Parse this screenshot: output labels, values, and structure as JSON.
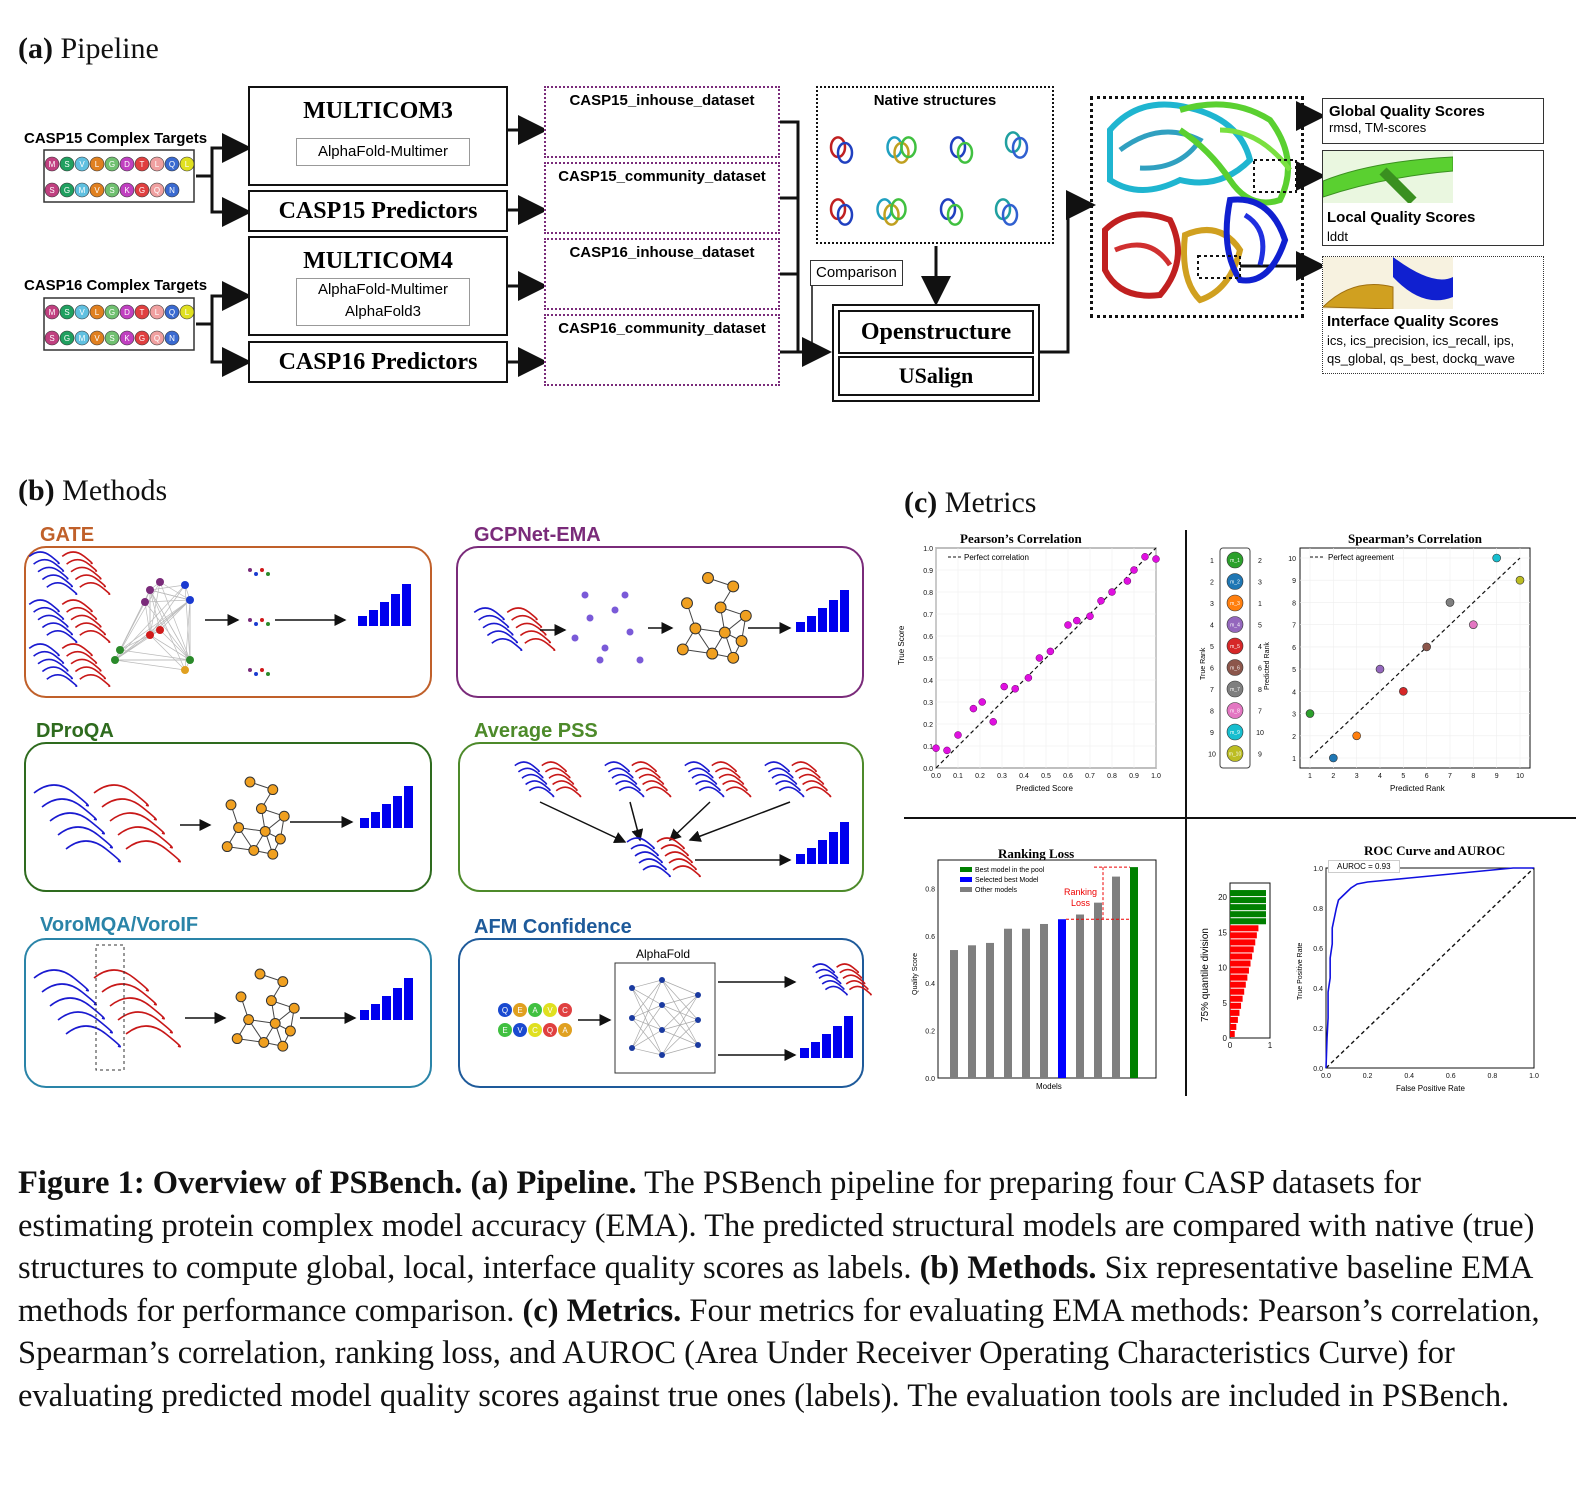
{
  "panel_a": {
    "label": "(a)",
    "title": "Pipeline",
    "casp15_targets": "CASP15 Complex Targets",
    "casp16_targets": "CASP16 Complex Targets",
    "seq_row1": [
      "M",
      "S",
      "V",
      "L",
      "G",
      "D",
      "T",
      "L",
      "Q",
      "L"
    ],
    "seq_row2": [
      "S",
      "G",
      "M",
      "V",
      "S",
      "K",
      "G",
      "Q",
      "N"
    ],
    "multicom3": "MULTICOM3",
    "multicom3_sub": "AlphaFold-Multimer",
    "casp15_predictors": "CASP15 Predictors",
    "multicom4": "MULTICOM4",
    "multicom4_sub1": "AlphaFold-Multimer",
    "multicom4_sub2": "AlphaFold3",
    "casp16_predictors": "CASP16 Predictors",
    "datasets": [
      "CASP15_inhouse_dataset",
      "CASP15_community_dataset",
      "CASP16_inhouse_dataset",
      "CASP16_community_dataset"
    ],
    "native": "Native structures",
    "comparison": "Comparison",
    "openstructure": "Openstructure",
    "usalign": "USalign",
    "global_h": "Global Quality Scores",
    "global_s": "rmsd, TM-scores",
    "local_h": "Local Quality Scores",
    "local_s": "lddt",
    "interface_h": "Interface Quality Scores",
    "interface_s1": "ics, ics_precision, ics_recall, ips,",
    "interface_s2": "qs_global, qs_best, dockq_wave"
  },
  "panel_b": {
    "label": "(b)",
    "title": "Methods",
    "methods": [
      {
        "name": "GATE",
        "color": "#c0602a"
      },
      {
        "name": "GCPNet-EMA",
        "color": "#7a2b7a"
      },
      {
        "name": "DProQA",
        "color": "#2e6b1e"
      },
      {
        "name": "Average PSS",
        "color": "#4d8a2a"
      },
      {
        "name": "VoroMQA/VoroIF",
        "color": "#2a84a8"
      },
      {
        "name": "AFM Confidence",
        "color": "#1e5a9a"
      }
    ],
    "alphafold": "AlphaFold",
    "afm_seq1": [
      "Q",
      "E",
      "A",
      "V",
      "C"
    ],
    "afm_seq2": [
      "E",
      "V",
      "C",
      "Q",
      "A"
    ]
  },
  "panel_c": {
    "label": "(c)",
    "title": "Metrics",
    "pearson": {
      "title": "Pearson’s Correlation",
      "xlabel": "Predicted Score",
      "ylabel": "True Score",
      "legend": "Perfect correlation",
      "ticks": [
        "0.0",
        "0.1",
        "0.2",
        "0.3",
        "0.4",
        "0.5",
        "0.6",
        "0.7",
        "0.8",
        "0.9",
        "1.0"
      ]
    },
    "spearman": {
      "title": "Spearman’s Correlation",
      "xlabel": "Predicted Rank",
      "ylabel": "True Rank",
      "ylabel2": "Predicted Rank",
      "legend": "Perfect agreement",
      "ticks": [
        "1",
        "2",
        "3",
        "4",
        "5",
        "6",
        "7",
        "8",
        "9",
        "10"
      ],
      "legend_models": [
        "m_1",
        "m_2",
        "m_3",
        "m_4",
        "m_5",
        "m_6",
        "m_7",
        "m_8",
        "m_9",
        "m_10"
      ],
      "legend_left": [
        "1",
        "2",
        "3",
        "4",
        "5",
        "6",
        "7",
        "8",
        "9",
        "10"
      ],
      "legend_right": [
        "2",
        "3",
        "1",
        "5",
        "4",
        "6",
        "8",
        "7",
        "10",
        "9"
      ]
    },
    "ranking": {
      "title": "Ranking Loss",
      "xlabel": "Models",
      "ylabel": "Quality Score",
      "legend": [
        "Best model in the pool",
        "Selected best Model",
        "Other models"
      ],
      "annotation1": "Ranking",
      "annotation2": "Loss",
      "ticks": [
        "0.0",
        "0.2",
        "0.4",
        "0.6",
        "0.8"
      ]
    },
    "quantile": {
      "ylabel": "75% quantile division",
      "yticks": [
        "0",
        "5",
        "10",
        "15",
        "20"
      ],
      "xticks": [
        "0",
        "1"
      ]
    },
    "roc": {
      "title": "ROC Curve and AUROC",
      "xlabel": "False Positive Rate",
      "ylabel": "True Positive Rate",
      "legend": "AUROC = 0.93",
      "ticks": [
        "0.0",
        "0.2",
        "0.4",
        "0.6",
        "0.8",
        "1.0"
      ]
    }
  },
  "chart_data": [
    {
      "type": "scatter",
      "title": "Pearson’s Correlation",
      "xlabel": "Predicted Score",
      "ylabel": "True Score",
      "xlim": [
        0,
        1
      ],
      "ylim": [
        0,
        1
      ],
      "x": [
        0.0,
        0.05,
        0.1,
        0.17,
        0.21,
        0.26,
        0.31,
        0.36,
        0.42,
        0.47,
        0.52,
        0.6,
        0.64,
        0.7,
        0.75,
        0.8,
        0.87,
        0.9,
        0.95,
        1.0
      ],
      "y": [
        0.09,
        0.08,
        0.15,
        0.27,
        0.3,
        0.21,
        0.37,
        0.36,
        0.41,
        0.5,
        0.53,
        0.65,
        0.67,
        0.69,
        0.76,
        0.8,
        0.85,
        0.9,
        0.96,
        0.95
      ]
    },
    {
      "type": "scatter",
      "title": "Spearman’s Correlation",
      "xlabel": "Predicted Rank",
      "ylabel": "True Rank",
      "xlim": [
        1,
        10
      ],
      "ylim": [
        1,
        10
      ],
      "points": [
        {
          "x": 1,
          "y": 3,
          "color": "#2ca02c"
        },
        {
          "x": 2,
          "y": 1,
          "color": "#1f77b4"
        },
        {
          "x": 3,
          "y": 2,
          "color": "#ff7f0e"
        },
        {
          "x": 4,
          "y": 5,
          "color": "#9467bd"
        },
        {
          "x": 5,
          "y": 4,
          "color": "#d62728"
        },
        {
          "x": 6,
          "y": 6,
          "color": "#8c564b"
        },
        {
          "x": 7,
          "y": 8,
          "color": "#7f7f7f"
        },
        {
          "x": 8,
          "y": 7,
          "color": "#e377c2"
        },
        {
          "x": 9,
          "y": 10,
          "color": "#17becf"
        },
        {
          "x": 10,
          "y": 9,
          "color": "#bcbd22"
        }
      ]
    },
    {
      "type": "bar",
      "title": "Ranking Loss",
      "xlabel": "Models",
      "ylabel": "Quality Score",
      "ylim": [
        0,
        0.92
      ],
      "values": [
        0.54,
        0.56,
        0.57,
        0.63,
        0.63,
        0.65,
        0.67,
        0.69,
        0.74,
        0.85,
        0.89
      ],
      "colors": [
        "#7f7f7f",
        "#7f7f7f",
        "#7f7f7f",
        "#7f7f7f",
        "#7f7f7f",
        "#7f7f7f",
        "#0000ff",
        "#7f7f7f",
        "#7f7f7f",
        "#7f7f7f",
        "#008000"
      ]
    },
    {
      "type": "bar",
      "ylabel": "75% quantile division",
      "orientation": "horizontal",
      "count": 21,
      "green_count": 5,
      "red_count": 16
    },
    {
      "type": "line",
      "title": "ROC Curve and AUROC",
      "xlabel": "False Positive Rate",
      "ylabel": "True Positive Rate",
      "xlim": [
        0,
        1
      ],
      "ylim": [
        0,
        1
      ],
      "auroc": 0.93,
      "x": [
        0,
        0.005,
        0.01,
        0.01,
        0.02,
        0.02,
        0.03,
        0.03,
        0.04,
        0.05,
        0.06,
        0.08,
        0.1,
        0.12,
        0.15,
        0.2,
        0.3,
        0.4,
        0.5,
        0.6,
        0.7,
        0.8,
        0.9,
        1.0
      ],
      "y": [
        0,
        0.15,
        0.25,
        0.38,
        0.45,
        0.55,
        0.62,
        0.7,
        0.75,
        0.8,
        0.84,
        0.86,
        0.88,
        0.9,
        0.92,
        0.93,
        0.94,
        0.95,
        0.96,
        0.97,
        0.98,
        0.99,
        1.0,
        1.0
      ]
    }
  ],
  "caption": {
    "fig": "Figure 1:",
    "fig_title": "Overview of PSBench.",
    "a_label": "(a) Pipeline.",
    "a_text": "The PSBench pipeline for preparing four CASP datasets for estimating protein complex model accuracy (EMA). The predicted structural models are compared with native (true) structures to compute global, local, interface quality scores as labels.",
    "b_label": "(b) Methods.",
    "b_text": "Six representative baseline EMA methods for performance comparison.",
    "c_label": "(c) Metrics.",
    "c_text": "Four metrics for evaluating EMA methods: Pearson’s correlation, Spearman’s correlation, ranking loss, and AUROC (Area Under Receiver Operating Characteristics Curve) for evaluating predicted model quality scores against true ones (labels). The evaluation tools are included in PSBench."
  }
}
